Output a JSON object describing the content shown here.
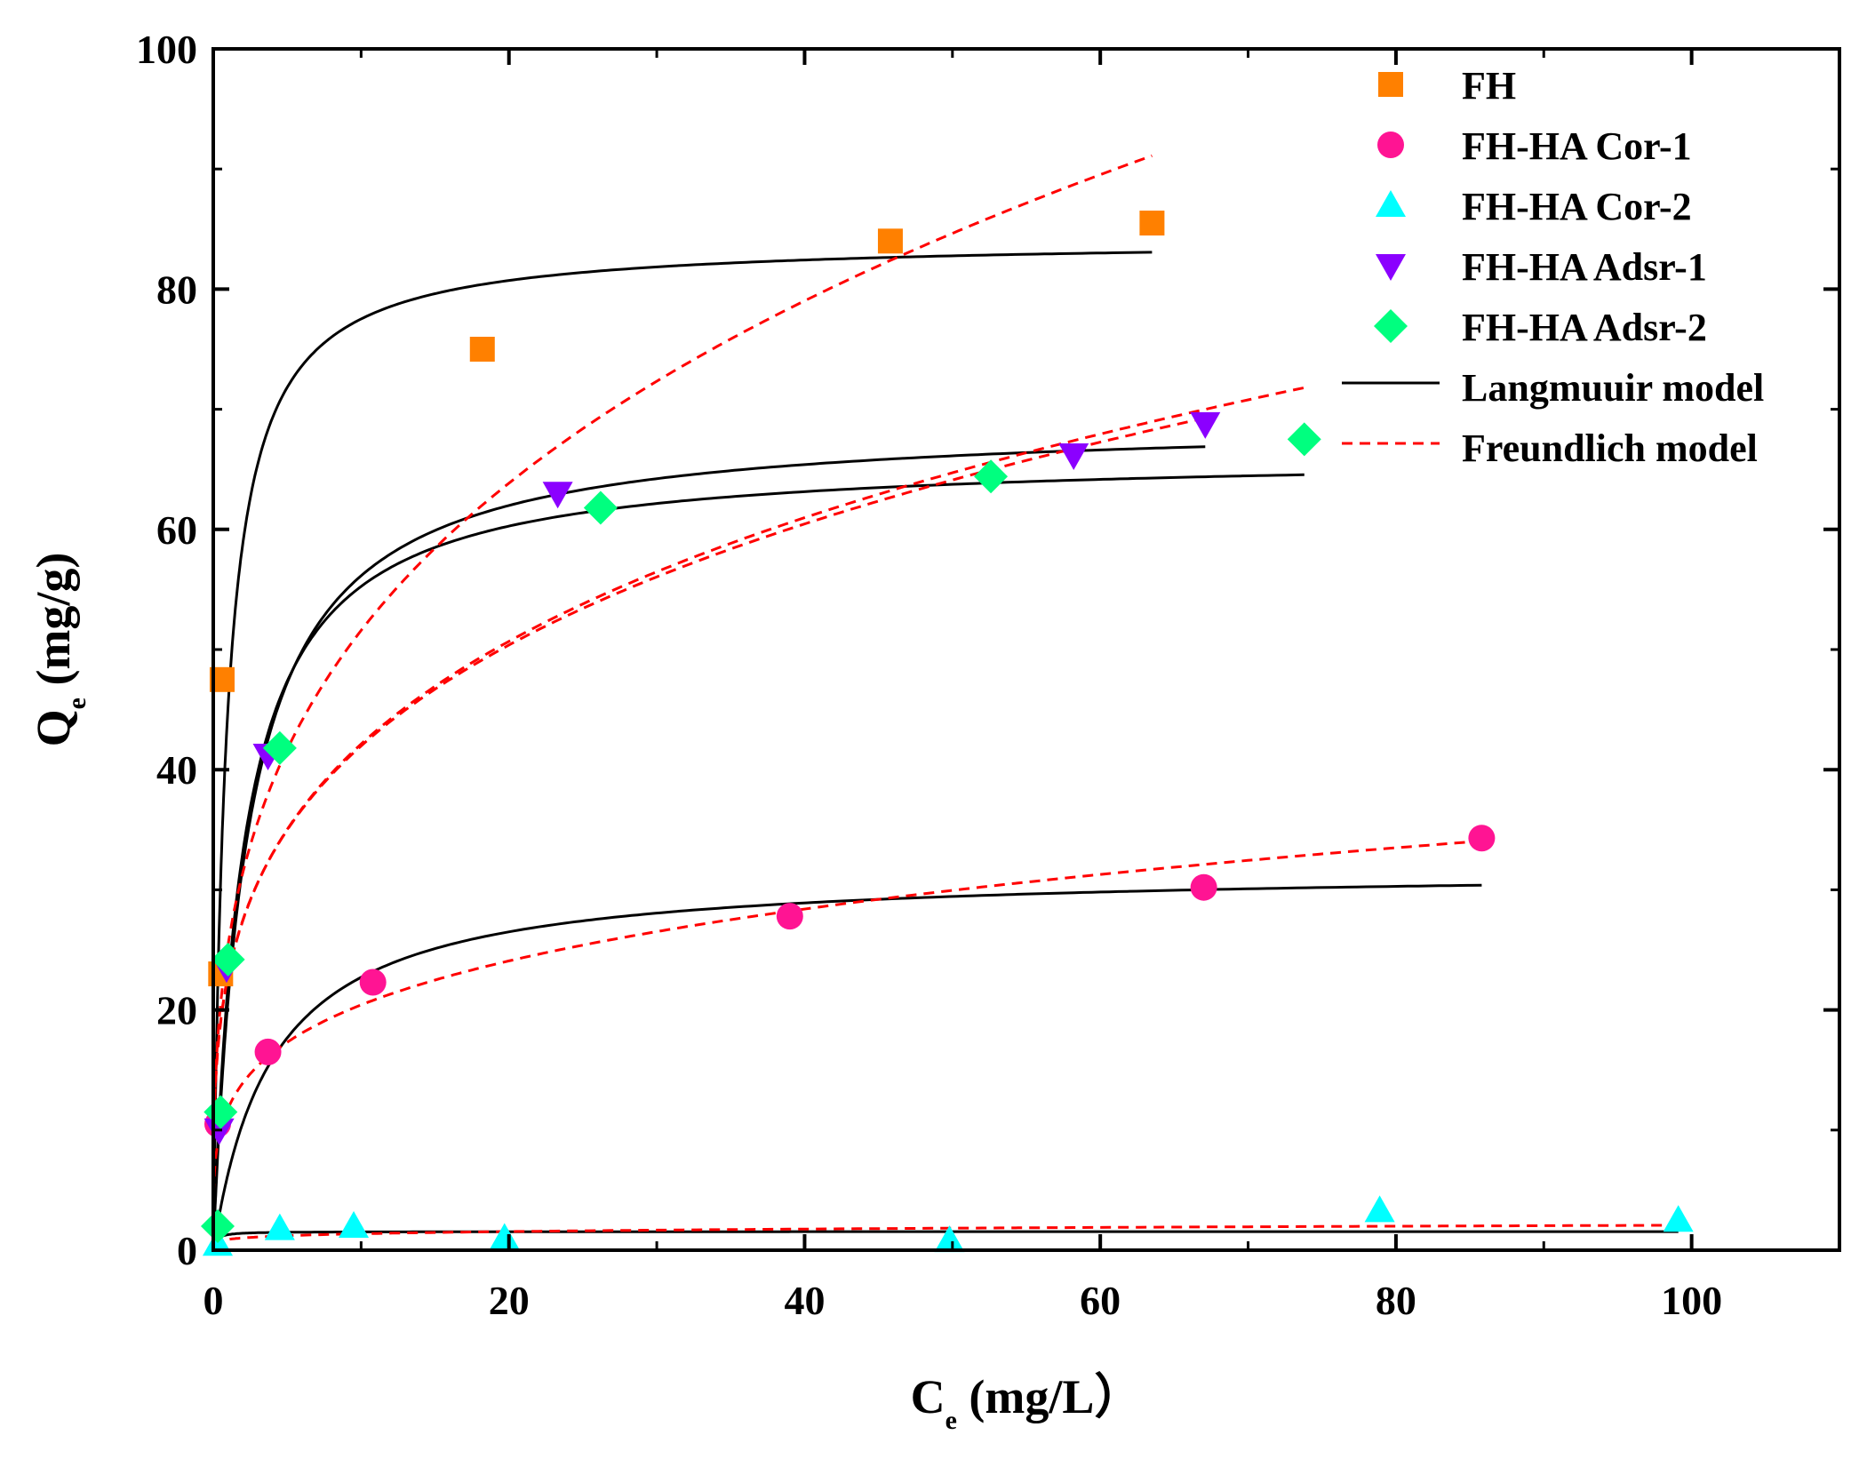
{
  "chart_data": {
    "type": "scatter",
    "title": "",
    "xlabel": {
      "main": "C",
      "sub": "e",
      "unit": " (mg/L）"
    },
    "ylabel": {
      "main": "Q",
      "sub": "e",
      "unit": " (mg/g)"
    },
    "xlim": [
      0,
      110
    ],
    "ylim": [
      0,
      100
    ],
    "xticks": [
      0,
      20,
      40,
      60,
      80,
      100
    ],
    "yticks": [
      0,
      20,
      40,
      60,
      80,
      100
    ],
    "xtick_labels": [
      "0",
      "20",
      "40",
      "60",
      "80",
      "100"
    ],
    "ytick_labels": [
      "0",
      "20",
      "40",
      "60",
      "80",
      "100"
    ],
    "grid": false,
    "legend_position": "top-right",
    "series": [
      {
        "name": "FH",
        "marker": "square",
        "color": "#FF8000",
        "points": [
          [
            0.6,
            47.5
          ],
          [
            0.5,
            23.0
          ],
          [
            18.2,
            75.0
          ],
          [
            45.8,
            84.0
          ],
          [
            63.5,
            85.5
          ]
        ]
      },
      {
        "name": "FH-HA Cor-1",
        "marker": "circle",
        "color": "#FF1493",
        "points": [
          [
            0.3,
            10.5
          ],
          [
            3.7,
            16.5
          ],
          [
            10.8,
            22.3
          ],
          [
            39.0,
            27.8
          ],
          [
            67.0,
            30.2
          ],
          [
            85.8,
            34.3
          ]
        ]
      },
      {
        "name": "FH-HA Cor-2",
        "marker": "triangle-up",
        "color": "#00FFFF",
        "points": [
          [
            0.3,
            0.5
          ],
          [
            4.5,
            1.8
          ],
          [
            9.5,
            2.0
          ],
          [
            19.7,
            1.0
          ],
          [
            49.8,
            0.8
          ],
          [
            78.9,
            3.3
          ],
          [
            99.1,
            2.5
          ]
        ]
      },
      {
        "name": "FH-HA Adsr-1",
        "marker": "triangle-down",
        "color": "#8B00FF",
        "points": [
          [
            0.4,
            10.0
          ],
          [
            0.9,
            23.5
          ],
          [
            3.7,
            41.2
          ],
          [
            23.3,
            63.0
          ],
          [
            58.2,
            66.2
          ],
          [
            67.1,
            68.8
          ]
        ]
      },
      {
        "name": "FH-HA Adsr-2",
        "marker": "diamond",
        "color": "#00FF7F",
        "points": [
          [
            0.3,
            2.0
          ],
          [
            0.5,
            11.5
          ],
          [
            1.0,
            24.2
          ],
          [
            4.5,
            41.8
          ],
          [
            26.2,
            61.8
          ],
          [
            52.6,
            64.4
          ],
          [
            73.8,
            67.5
          ]
        ]
      }
    ],
    "fits": [
      {
        "name": "Langmuuir model",
        "style": "solid",
        "color": "#000000",
        "curves": [
          {
            "model": "langmuir",
            "qmax": 84.2,
            "k": 1.16,
            "xmax": 63.5
          },
          {
            "model": "langmuir",
            "qmax": 31.8,
            "k": 0.25,
            "xmax": 85.8
          },
          {
            "model": "langmuir",
            "qmax": 1.55,
            "k": 5.0,
            "xmax": 99.1
          },
          {
            "model": "langmuir",
            "qmax": 69.2,
            "k": 0.43,
            "xmax": 67.1
          },
          {
            "model": "langmuir",
            "qmax": 66.3,
            "k": 0.5,
            "xmax": 73.8
          }
        ]
      },
      {
        "name": "Freundlich model",
        "style": "dashed",
        "color": "#FF0000",
        "curves": [
          {
            "model": "freundlich",
            "kf": 25.4,
            "n": 3.25,
            "xmax": 63.5
          },
          {
            "model": "freundlich",
            "kf": 11.8,
            "n": 4.2,
            "xmax": 85.8
          },
          {
            "model": "freundlich",
            "kf": 0.9,
            "n": 5.5,
            "xmax": 99.1
          },
          {
            "model": "freundlich",
            "kf": 22.9,
            "n": 3.8,
            "xmax": 67.1
          },
          {
            "model": "freundlich",
            "kf": 22.8,
            "n": 3.75,
            "xmax": 73.8
          }
        ]
      }
    ],
    "legend": [
      {
        "label": "FH",
        "kind": "marker",
        "marker": "square",
        "color": "#FF8000"
      },
      {
        "label": "FH-HA Cor-1",
        "kind": "marker",
        "marker": "circle",
        "color": "#FF1493"
      },
      {
        "label": "FH-HA Cor-2",
        "kind": "marker",
        "marker": "triangle-up",
        "color": "#00FFFF"
      },
      {
        "label": "FH-HA Adsr-1",
        "kind": "marker",
        "marker": "triangle-down",
        "color": "#8B00FF"
      },
      {
        "label": "FH-HA Adsr-2",
        "kind": "marker",
        "marker": "diamond",
        "color": "#00FF7F"
      },
      {
        "label": "Langmuuir model",
        "kind": "line",
        "style": "solid",
        "color": "#000000"
      },
      {
        "label": "Freundlich model",
        "kind": "line",
        "style": "dashed",
        "color": "#FF0000"
      }
    ]
  }
}
